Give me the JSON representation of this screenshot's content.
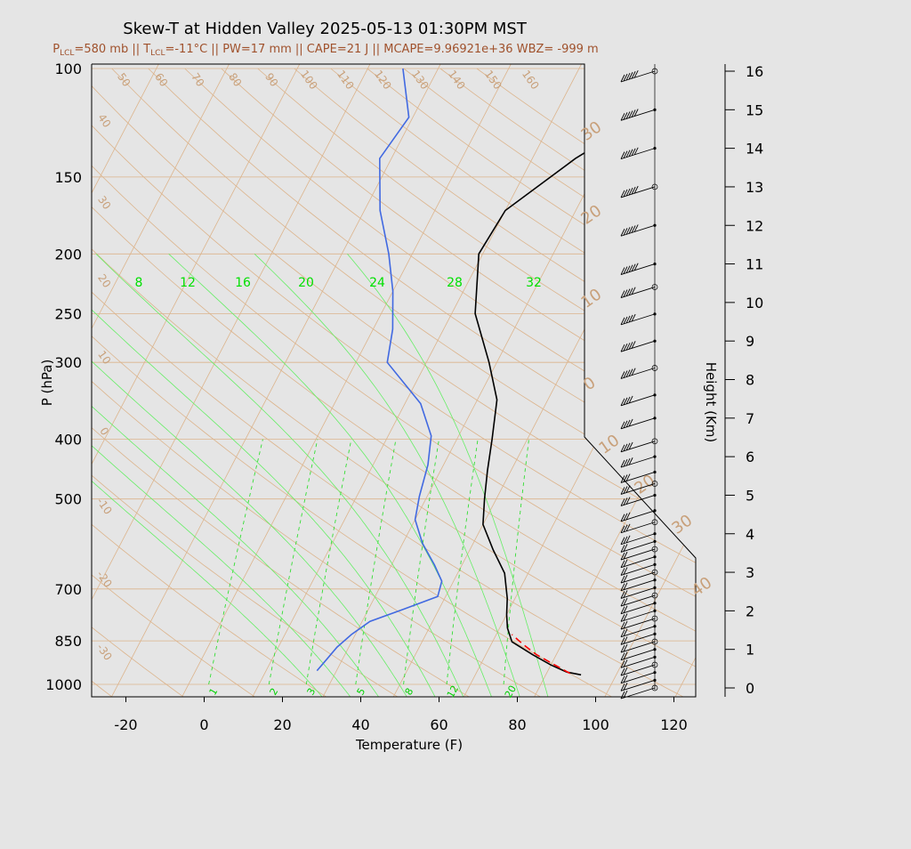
{
  "title": "Skew-T at Hidden Valley 2025-05-13 01:30PM MST",
  "subtitle": {
    "plcl_pre": "P",
    "plcl_sub": "LCL",
    "plcl_val": "=580 mb || T",
    "tlcl_sub": "LCL",
    "tlcl_val": "=-11°C || PW=17 mm || CAPE=21 J || MCAPE=9.96921e+36 WBZ= -999 m"
  },
  "chart_data": {
    "type": "line",
    "title": "Skew-T at Hidden Valley 2025-05-13 01:30PM MST",
    "xlabel": "Temperature (F)",
    "ylabel": "P (hPa)",
    "y2label": "Height (Km)",
    "x_ticks": [
      "-20",
      "0",
      "20",
      "40",
      "60",
      "80",
      "100",
      "120"
    ],
    "x_tick_values": [
      -20,
      0,
      20,
      40,
      60,
      80,
      100,
      120
    ],
    "xlim": [
      -28,
      125
    ],
    "ylim": [
      1030,
      100
    ],
    "y_scale": "log",
    "p_ticks": [
      "100",
      "150",
      "200",
      "250",
      "300",
      "400",
      "500",
      "700",
      "850",
      "1000"
    ],
    "p_tick_values": [
      100,
      150,
      200,
      250,
      300,
      400,
      500,
      700,
      850,
      1000
    ],
    "height_ticks": [
      "0",
      "1",
      "2",
      "3",
      "4",
      "5",
      "6",
      "7",
      "8",
      "9",
      "10",
      "11",
      "12",
      "13",
      "14",
      "15",
      "16"
    ],
    "height_tick_values": [
      0,
      1,
      2,
      3,
      4,
      5,
      6,
      7,
      8,
      9,
      10,
      11,
      12,
      13,
      14,
      15,
      16
    ],
    "isotherm_labels": [
      "30",
      "20",
      "10",
      "0",
      "10",
      "20",
      "30",
      "40"
    ],
    "isotherm_values": [
      -30,
      -20,
      -10,
      0,
      10,
      20,
      30,
      40
    ],
    "dry_adiabat_labels": [
      "50",
      "60",
      "70",
      "80",
      "90",
      "100",
      "110",
      "120",
      "130",
      "140",
      "150",
      "160"
    ],
    "dry_adiabat_left_labels": [
      "40",
      "30",
      "20",
      "10",
      "0",
      "-10",
      "-20",
      "-30"
    ],
    "mixing_ratio_labels": [
      "8",
      "12",
      "16",
      "20",
      "24",
      "28",
      "32"
    ],
    "mixing_ratio_values": [
      8,
      12,
      16,
      20,
      24,
      28,
      32
    ],
    "mixing_ratio_bottom_labels": [
      "1",
      "2",
      "3",
      "5",
      "8",
      "12",
      "20"
    ],
    "mixing_ratio_bottom_values": [
      1,
      2,
      3,
      5,
      8,
      12,
      20
    ],
    "wet_adiabat_values": [
      42,
      45,
      47,
      49,
      51,
      53,
      55,
      57
    ],
    "series": [
      {
        "name": "Temperature",
        "color": "#000000",
        "points": [
          [
            95,
            965
          ],
          [
            91,
            955
          ],
          [
            86,
            930
          ],
          [
            80,
            895
          ],
          [
            73,
            853
          ],
          [
            70,
            810
          ],
          [
            68,
            770
          ],
          [
            66,
            725
          ],
          [
            62,
            660
          ],
          [
            56,
            605
          ],
          [
            50,
            550
          ],
          [
            47,
            500
          ],
          [
            44,
            450
          ],
          [
            41,
            400
          ],
          [
            37,
            345
          ],
          [
            30,
            300
          ],
          [
            20,
            250
          ],
          [
            13,
            200
          ],
          [
            14,
            170
          ],
          [
            25,
            140
          ],
          [
            40,
            115
          ],
          [
            55,
            100
          ]
        ]
      },
      {
        "name": "Dewpoint",
        "color": "#4169e1",
        "points": [
          [
            27,
            950
          ],
          [
            28,
            910
          ],
          [
            29,
            870
          ],
          [
            31,
            830
          ],
          [
            34,
            790
          ],
          [
            41,
            755
          ],
          [
            48,
            720
          ],
          [
            47,
            680
          ],
          [
            43,
            640
          ],
          [
            37,
            590
          ],
          [
            32,
            540
          ],
          [
            30,
            495
          ],
          [
            28,
            440
          ],
          [
            25,
            395
          ],
          [
            18,
            350
          ],
          [
            4,
            300
          ],
          [
            1,
            265
          ],
          [
            -4,
            230
          ],
          [
            -10,
            200
          ],
          [
            -18,
            170
          ],
          [
            -25,
            140
          ],
          [
            -23,
            120
          ],
          [
            -31,
            100
          ]
        ]
      },
      {
        "name": "Parcel",
        "color": "#ff0000",
        "dashed": true,
        "points": [
          [
            92,
            960
          ],
          [
            87,
            930
          ],
          [
            81,
            895
          ],
          [
            76,
            860
          ],
          [
            72,
            830
          ]
        ]
      }
    ],
    "wind_profile_heights_km": [
      0,
      0.2,
      0.4,
      0.6,
      0.8,
      1,
      1.2,
      1.4,
      1.6,
      1.8,
      2,
      2.2,
      2.4,
      2.6,
      2.8,
      3,
      3.2,
      3.4,
      3.6,
      3.8,
      4,
      4.3,
      4.6,
      5,
      5.3,
      5.6,
      6,
      6.4,
      7,
      7.6,
      8.3,
      9,
      9.7,
      10.4,
      11,
      12,
      13,
      14,
      15,
      16
    ],
    "wind_speeds_kt": [
      15,
      15,
      16,
      16,
      17,
      17,
      18,
      18,
      19,
      19,
      20,
      20,
      21,
      21,
      22,
      22,
      23,
      23,
      24,
      24,
      25,
      26,
      28,
      30,
      32,
      33,
      35,
      37,
      40,
      42,
      45,
      48,
      50,
      52,
      55,
      58,
      60,
      62,
      60,
      58
    ]
  }
}
